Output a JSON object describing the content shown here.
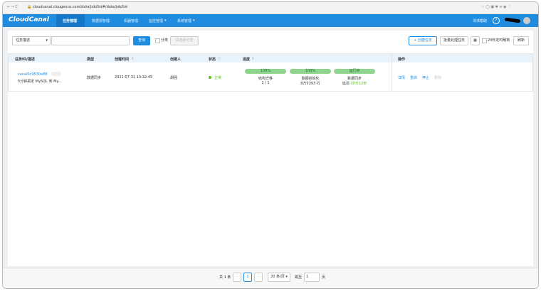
{
  "browser": {
    "url": "cloudcanal.clougence.com/data/job/list#/data/job/list"
  },
  "nav": {
    "logo": "CloudCanal",
    "tabs": [
      "任务管理",
      "数据源管理",
      "机器管理",
      "监控管理",
      "系统管理"
    ],
    "help": "寻求帮助"
  },
  "filters": {
    "select": "任务描述",
    "search": "查询",
    "category": "分类",
    "category_select": "请选择分类",
    "create": "创建任务",
    "batch": "批量处理任务",
    "auto_refresh": "20秒定时刷新",
    "refresh": "刷新"
  },
  "table": {
    "headers": [
      "任务ID/描述",
      "类型",
      "创建时间",
      "创建人",
      "状态",
      "进度",
      "操作"
    ],
    "rows": [
      {
        "id": "canal0c9530e88",
        "desc": "5分钟搞定 MySQL 到 My...",
        "type": "数据同步",
        "created": "2021-07-31 13:32:49",
        "creator": "胡强",
        "status": "正常",
        "progress": [
          {
            "bar": "100%",
            "name": "结构迁移",
            "detail": "1 / 1"
          },
          {
            "bar": "100%",
            "name": "数据初始化",
            "detail": "8万5393 行"
          },
          {
            "bar": "运行中",
            "name": "数据同步",
            "detail_prefix": "延迟",
            "detail": "00分12秒"
          }
        ],
        "actions": [
          "详情",
          "重启",
          "停止",
          "删除"
        ]
      }
    ]
  },
  "pagination": {
    "total": "共 1 条",
    "page": "1",
    "size": "20 条/页",
    "jump": "跳至",
    "jump_value": "1",
    "unit": "页"
  }
}
